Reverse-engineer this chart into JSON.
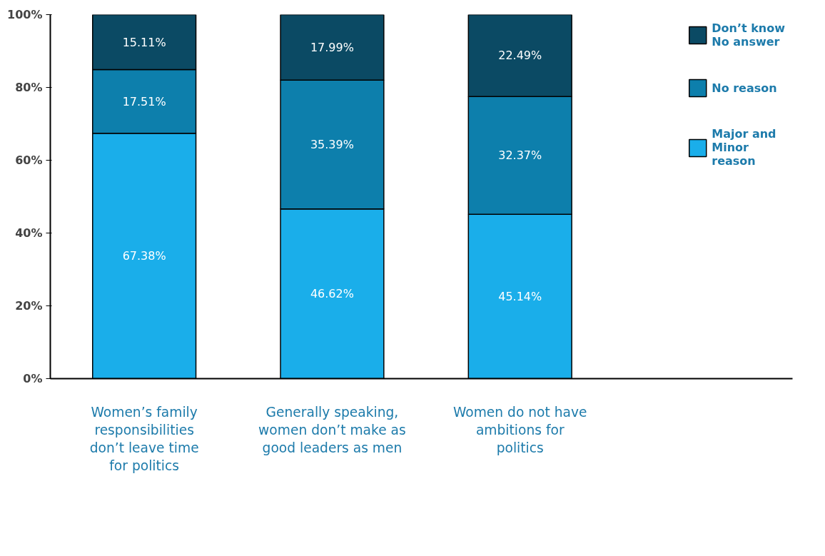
{
  "chart_data": {
    "type": "bar",
    "stacked": true,
    "categories": [
      "Women’s family responsibilities don’t leave time for politics",
      "Generally speaking, women don’t make as good leaders as men",
      "Women do not have ambitions for politics"
    ],
    "series": [
      {
        "name": "Major and Minor reason",
        "color": "#1aaeea",
        "values": [
          67.38,
          46.62,
          45.14
        ],
        "value_labels": [
          "67.38%",
          "46.62%",
          "45.14%"
        ]
      },
      {
        "name": "No reason",
        "color": "#0d7fac",
        "values": [
          17.51,
          35.39,
          32.37
        ],
        "value_labels": [
          "17.51%",
          "35.39%",
          "32.37%"
        ]
      },
      {
        "name": "Don’t know No answer",
        "color": "#0b4a64",
        "values": [
          15.11,
          17.99,
          22.49
        ],
        "value_labels": [
          "15.11%",
          "17.99%",
          "22.49%"
        ]
      }
    ],
    "ylim": [
      0,
      100
    ],
    "yticks": [
      {
        "value": 0,
        "label": "0%"
      },
      {
        "value": 20,
        "label": "20%"
      },
      {
        "value": 40,
        "label": "40%"
      },
      {
        "value": 60,
        "label": "60%"
      },
      {
        "value": 80,
        "label": "80%"
      },
      {
        "value": 100,
        "label": "100%"
      }
    ],
    "grid": false,
    "legend": "right"
  }
}
